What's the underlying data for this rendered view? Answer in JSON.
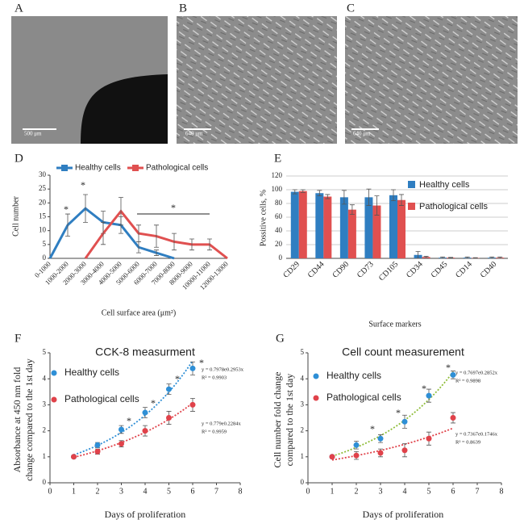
{
  "images": [
    {
      "label": "A",
      "scale_bar": "500 μm"
    },
    {
      "label": "B",
      "scale_bar": "640 μm"
    },
    {
      "label": "C",
      "scale_bar": "640 μm"
    }
  ],
  "chart_data": [
    {
      "type": "line",
      "label": "D",
      "xlabel": "Cell surface area (μm²)",
      "ylabel": "Cell number",
      "categories": [
        "0-1000",
        "1000-2000",
        "2000-3000",
        "3000-4000",
        "4000-5000",
        "5000-6000",
        "6000-7000",
        "7000-8000",
        "8000-9000",
        "10000-11000",
        "12000-13000"
      ],
      "ylim": [
        0,
        30
      ],
      "yticks": [
        0,
        5,
        10,
        15,
        20,
        25,
        30
      ],
      "annotations": [
        "*",
        "*",
        "*"
      ],
      "series": [
        {
          "name": "Healthy cells",
          "color": "#2f7ec1",
          "values": [
            0,
            12,
            18,
            13,
            12,
            4,
            2,
            0,
            null,
            null,
            null
          ],
          "errors": [
            0,
            4,
            5,
            4,
            3,
            2,
            1,
            0,
            null,
            null,
            null
          ]
        },
        {
          "name": "Pathological cells",
          "color": "#e05050",
          "values": [
            null,
            null,
            0,
            9,
            17,
            9,
            8,
            6,
            5,
            5,
            0
          ],
          "errors": [
            null,
            null,
            0,
            4,
            5,
            3,
            4,
            3,
            2,
            2,
            0
          ]
        }
      ]
    },
    {
      "type": "bar",
      "label": "E",
      "xlabel": "Surface markers",
      "ylabel": "Possitive cells, %",
      "grid": true,
      "categories": [
        "CD29",
        "CD44",
        "CD90",
        "CD73",
        "CD105",
        "CD34",
        "CD45",
        "CD14",
        "CD40"
      ],
      "ylim": [
        0,
        120
      ],
      "yticks": [
        0,
        20,
        40,
        60,
        80,
        100,
        120
      ],
      "series": [
        {
          "name": "Healthy cells",
          "color": "#2f7ec1",
          "values": [
            97,
            95,
            89,
            89,
            92,
            5,
            1,
            1,
            1
          ],
          "errors": [
            3,
            4,
            10,
            12,
            8,
            5,
            1,
            1,
            1
          ]
        },
        {
          "name": "Pathological cells",
          "color": "#e05050",
          "values": [
            98,
            90,
            71,
            77,
            85,
            2,
            1,
            0.5,
            1
          ],
          "errors": [
            2,
            3,
            7,
            14,
            8,
            1,
            0.5,
            0.5,
            1
          ]
        }
      ]
    },
    {
      "type": "scatter",
      "label": "F",
      "title": "CCK-8 measurment",
      "xlabel": "Days of proliferation",
      "ylabel": [
        "Absorbance at 450 nm fold",
        "change compared to the 1st day"
      ],
      "x": [
        1,
        2,
        3,
        4,
        5,
        6
      ],
      "xlim": [
        0,
        8
      ],
      "xticks": [
        0,
        1,
        2,
        3,
        4,
        5,
        6,
        7,
        8
      ],
      "ylim": [
        0,
        5
      ],
      "yticks": [
        0,
        1,
        2,
        3,
        4,
        5
      ],
      "annotations": [
        "*",
        "*",
        "*",
        "*"
      ],
      "series": [
        {
          "name": "Healthy cells",
          "color": "#2e8fd6",
          "values": [
            1,
            1.45,
            2.05,
            2.7,
            3.6,
            4.4
          ],
          "errors": [
            0.05,
            0.1,
            0.15,
            0.2,
            0.2,
            0.25
          ],
          "trendline": {
            "a": 0.7978,
            "b": 0.2953,
            "color": "#2e8fd6",
            "equation": "y = 0.7978e0.2953x",
            "r2": "R² = 0.9903"
          }
        },
        {
          "name": "Pathological cells",
          "color": "#e0424a",
          "values": [
            1,
            1.2,
            1.5,
            2,
            2.5,
            3
          ],
          "errors": [
            0.05,
            0.1,
            0.12,
            0.2,
            0.25,
            0.25
          ],
          "trendline": {
            "a": 0.779,
            "b": 0.2284,
            "color": "#e0424a",
            "equation": "y = 0.779e0.2284x",
            "r2": "R² = 0.9959"
          }
        }
      ]
    },
    {
      "type": "scatter",
      "label": "G",
      "title": "Cell count measurement",
      "xlabel": "Days of proliferation",
      "ylabel": [
        "Cell number fold change",
        "compared to the 1st day"
      ],
      "x": [
        1,
        2,
        3,
        4,
        5,
        6
      ],
      "xlim": [
        0,
        8
      ],
      "xticks": [
        0,
        1,
        2,
        3,
        4,
        5,
        6,
        7,
        8
      ],
      "ylim": [
        0,
        5
      ],
      "yticks": [
        0,
        1,
        2,
        3,
        4,
        5
      ],
      "annotations": [
        "*",
        "*",
        "*",
        "*"
      ],
      "series": [
        {
          "name": "Healthy cells",
          "color": "#2e8fd6",
          "values": [
            1,
            1.45,
            1.7,
            2.35,
            3.35,
            4.15
          ],
          "errors": [
            0.05,
            0.15,
            0.15,
            0.25,
            0.25,
            0.15
          ],
          "trendline": {
            "a": 0.7697,
            "b": 0.2852,
            "color": "#8fbd3a",
            "equation": "y = 0.7697e0.2852x",
            "r2": "R² = 0.9898"
          }
        },
        {
          "name": "Pathological cells",
          "color": "#e0424a",
          "values": [
            1,
            1.05,
            1.15,
            1.25,
            1.7,
            2.5
          ],
          "errors": [
            0.05,
            0.15,
            0.15,
            0.25,
            0.25,
            0.2
          ],
          "trendline": {
            "a": 0.7367,
            "b": 0.1746,
            "color": "#e0424a",
            "equation": "y = 0.7367e0.1746x",
            "r2": "R² = 0.8639"
          }
        }
      ]
    }
  ]
}
